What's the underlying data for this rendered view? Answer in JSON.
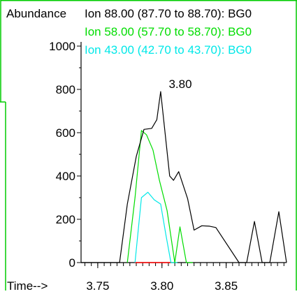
{
  "chart_data": {
    "type": "line",
    "ylabel": "Abundance",
    "xlabel": "Time-->",
    "xlim": [
      3.737,
      3.897
    ],
    "ylim": [
      0,
      1000
    ],
    "x_ticks": [
      "3.75",
      "3.80",
      "3.85"
    ],
    "y_ticks": [
      "0",
      "200",
      "400",
      "600",
      "800",
      "1000"
    ],
    "peak_annotation": {
      "text": "3.80",
      "x": 3.799,
      "y": 790
    },
    "colors": {
      "frame": "#00cc00",
      "axis": "#000000",
      "baseline": "#ff0000"
    },
    "series": [
      {
        "name": "Ion  88.00 (87.70 to 88.70): BG0",
        "color": "#000000",
        "x": [
          3.737,
          3.767,
          3.773,
          3.78,
          3.786,
          3.792,
          3.796,
          3.799,
          3.806,
          3.809,
          3.813,
          3.82,
          3.825,
          3.831,
          3.837,
          3.842,
          3.86,
          3.866,
          3.872,
          3.878,
          3.884,
          3.891,
          3.897
        ],
        "y": [
          0,
          0,
          270,
          490,
          615,
          620,
          660,
          790,
          400,
          380,
          420,
          295,
          150,
          170,
          168,
          162,
          0,
          0,
          190,
          0,
          0,
          235,
          0
        ]
      },
      {
        "name": "Ion  58.00 (57.70 to 58.70): BG0",
        "color": "#00dd00",
        "x": [
          3.773,
          3.779,
          3.784,
          3.788,
          3.793,
          3.798,
          3.804,
          3.81,
          3.814,
          3.819,
          3.824
        ],
        "y": [
          0,
          300,
          610,
          590,
          520,
          380,
          240,
          0,
          165,
          0,
          0
        ]
      },
      {
        "name": "Ion  43.00 (42.70 to 43.70): BG0",
        "color": "#00e8e8",
        "x": [
          3.779,
          3.784,
          3.789,
          3.794,
          3.799,
          3.803,
          3.807,
          3.812
        ],
        "y": [
          0,
          300,
          325,
          290,
          270,
          130,
          0,
          0
        ]
      }
    ]
  }
}
